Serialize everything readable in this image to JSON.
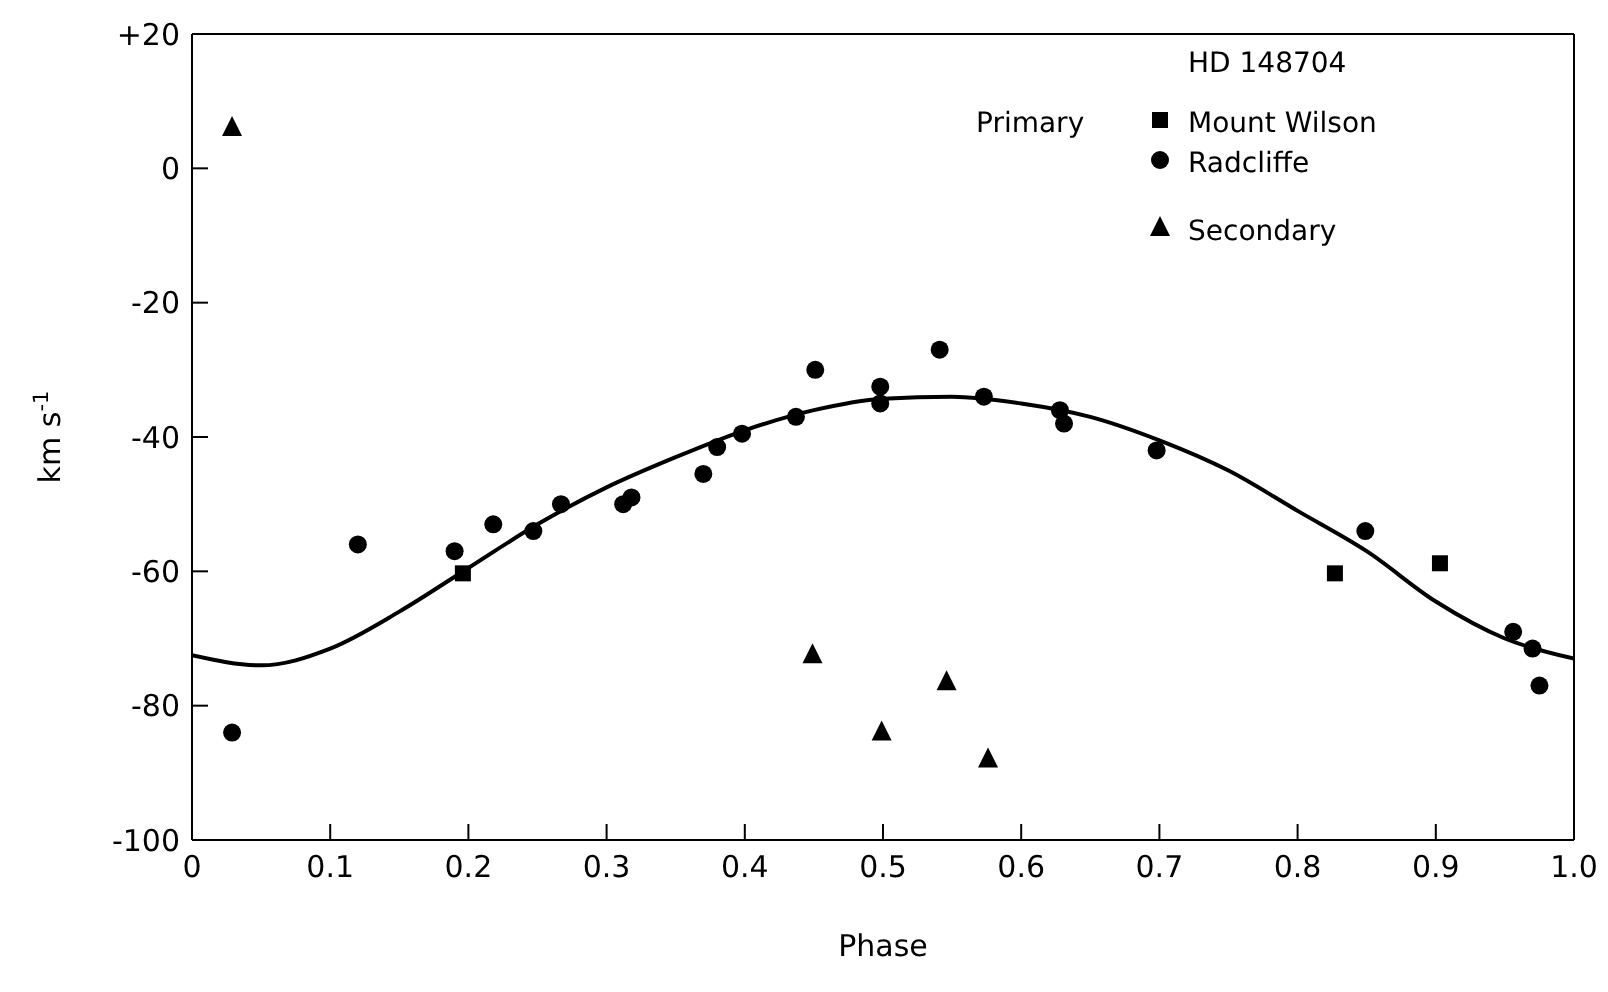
{
  "chart_data": {
    "type": "scatter",
    "title": "HD 148704",
    "xlabel": "Phase",
    "ylabel": "km s$^{-1}$",
    "annotations": [
      "Primary"
    ],
    "xlim": [
      0,
      1
    ],
    "xticks": [
      0,
      0.1,
      0.2,
      0.3,
      0.4,
      0.5,
      0.6,
      0.7,
      0.8,
      0.9,
      {
        "value": 1,
        "label": "1.0"
      }
    ],
    "ylim": [
      -100,
      20
    ],
    "yticks": [
      -100,
      -80,
      -60,
      -40,
      -20,
      0,
      {
        "value": 20,
        "label": "+20"
      }
    ],
    "legend": "top right",
    "series": [
      {
        "name": "Mount Wilson",
        "color": "#000000",
        "marker": "square",
        "x": [
          0.196,
          0.827,
          0.903
        ],
        "values": [
          -60.3,
          -60.3,
          -58.8
        ]
      },
      {
        "name": "Radcliffe",
        "color": "#000000",
        "marker": "circle",
        "x": [
          0.029,
          0.12,
          0.19,
          0.218,
          0.247,
          0.267,
          0.312,
          0.318,
          0.37,
          0.38,
          0.398,
          0.437,
          0.451,
          0.498,
          0.498,
          0.541,
          0.573,
          0.628,
          0.631,
          0.698,
          0.849,
          0.956,
          0.97,
          0.975
        ],
        "values": [
          -84,
          -56,
          -57,
          -53,
          -54,
          -50,
          -50,
          -49,
          -45.5,
          -41.5,
          -39.5,
          -37,
          -30,
          -32.5,
          -35,
          -27,
          -34,
          -36,
          -38,
          -42,
          -54,
          -69,
          -71.5,
          -77
        ]
      },
      {
        "name": "Secondary",
        "color": "#000000",
        "marker": "triangle",
        "x": [
          0.029,
          0.449,
          0.499,
          0.546,
          0.576
        ],
        "values": [
          6,
          -72.5,
          -84,
          -76.5,
          -88
        ]
      },
      {
        "type": "line",
        "color": "#000000",
        "marker": "none",
        "line_style": "solid",
        "x": [
          0,
          0.05,
          0.1,
          0.15,
          0.2,
          0.25,
          0.3,
          0.35,
          0.4,
          0.45,
          0.5,
          0.55,
          0.6,
          0.65,
          0.7,
          0.75,
          0.8,
          0.85,
          0.9,
          0.95,
          1.0
        ],
        "values": [
          -72.5,
          -74,
          -71.5,
          -66,
          -59.5,
          -53,
          -47.5,
          -43,
          -39,
          -36,
          -34.3,
          -34,
          -35,
          -37,
          -40.5,
          -45,
          -51,
          -57,
          -64.5,
          -70,
          -73
        ]
      }
    ]
  }
}
